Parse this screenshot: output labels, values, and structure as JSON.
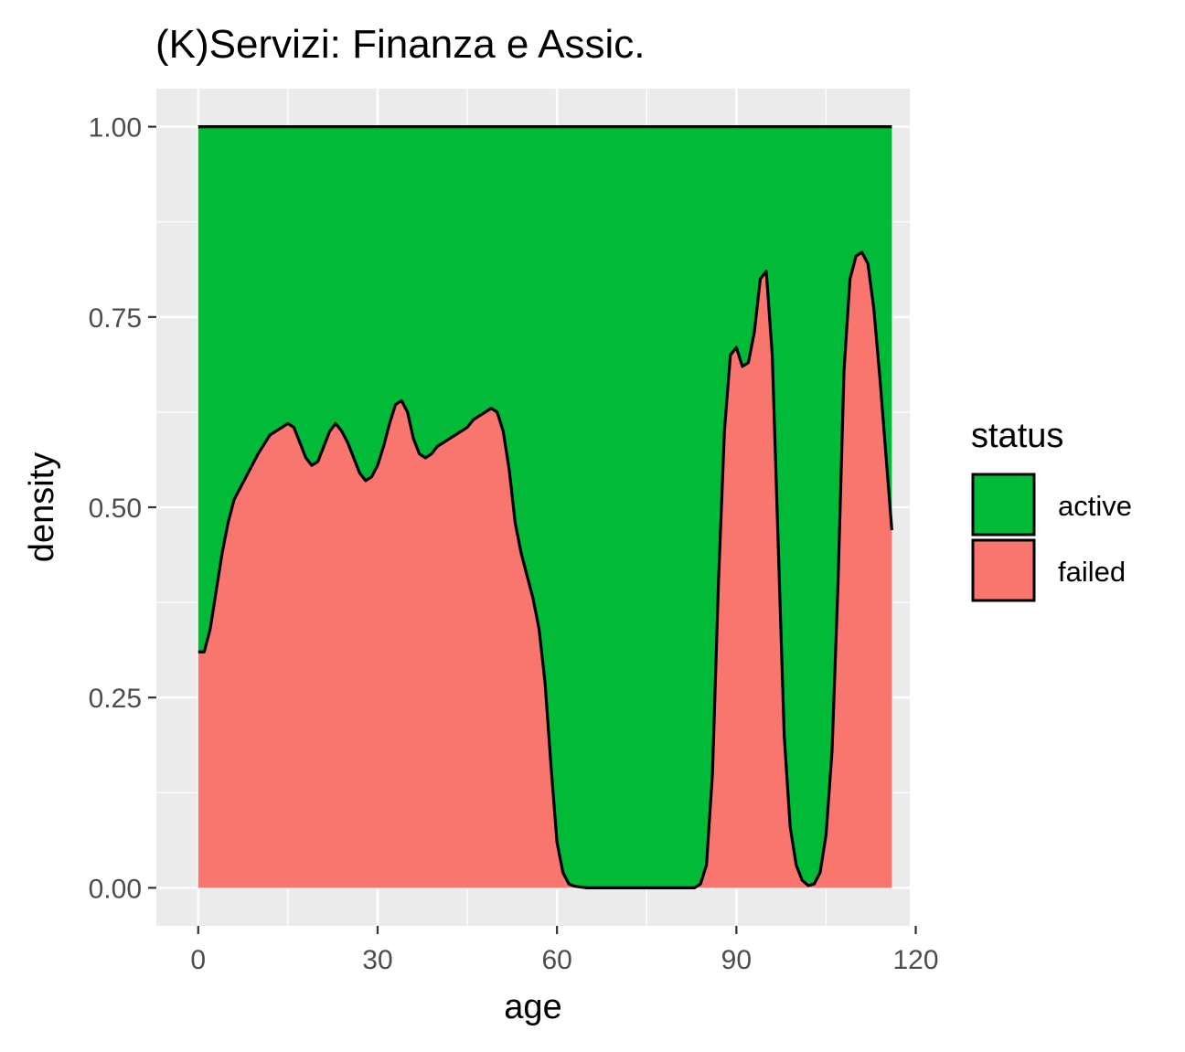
{
  "chart_data": {
    "type": "area",
    "title": "(K)Servizi: Finanza e Assic.",
    "xlabel": "age",
    "ylabel": "density",
    "xlim": [
      -7,
      119
    ],
    "ylim": [
      -0.05,
      1.05
    ],
    "x_ticks": [
      0,
      30,
      60,
      90,
      120
    ],
    "y_ticks": [
      0.0,
      0.25,
      0.5,
      0.75,
      1.0
    ],
    "x_tick_labels": [
      "0",
      "30",
      "60",
      "90",
      "120"
    ],
    "y_tick_labels": [
      "0.00",
      "0.25",
      "0.50",
      "0.75",
      "1.00"
    ],
    "grid": true,
    "stacked": true,
    "position": "fill",
    "legend": {
      "title": "status",
      "placement": "right",
      "entries": [
        {
          "label": "active",
          "color": "#00BA38"
        },
        {
          "label": "failed",
          "color": "#F8766D"
        }
      ]
    },
    "series": [
      {
        "name": "active",
        "color": "#00BA38"
      },
      {
        "name": "failed",
        "color": "#F8766D",
        "x": [
          0,
          1,
          2,
          3,
          4,
          5,
          6,
          8,
          10,
          12,
          14,
          15,
          16,
          17,
          18,
          19,
          20,
          21,
          22,
          23,
          24,
          25,
          26,
          27,
          28,
          29,
          30,
          31,
          32,
          33,
          34,
          35,
          36,
          37,
          38,
          39,
          40,
          41,
          42,
          43,
          44,
          45,
          46,
          47,
          48,
          49,
          50,
          51,
          52,
          53,
          54,
          55,
          56,
          57,
          58,
          59,
          60,
          61,
          62,
          63,
          64,
          65,
          66,
          70,
          75,
          80,
          83,
          84,
          85,
          86,
          87,
          88,
          89,
          90,
          91,
          92,
          93,
          94,
          95,
          96,
          97,
          98,
          99,
          100,
          101,
          102,
          103,
          104,
          105,
          106,
          107,
          108,
          109,
          110,
          111,
          112,
          113,
          114,
          115,
          116
        ],
        "values": [
          0.31,
          0.31,
          0.34,
          0.39,
          0.44,
          0.48,
          0.51,
          0.54,
          0.57,
          0.595,
          0.605,
          0.61,
          0.605,
          0.585,
          0.565,
          0.555,
          0.56,
          0.58,
          0.6,
          0.61,
          0.6,
          0.585,
          0.565,
          0.545,
          0.535,
          0.54,
          0.555,
          0.58,
          0.61,
          0.635,
          0.64,
          0.625,
          0.59,
          0.57,
          0.565,
          0.57,
          0.58,
          0.585,
          0.59,
          0.595,
          0.6,
          0.605,
          0.615,
          0.62,
          0.625,
          0.63,
          0.625,
          0.6,
          0.55,
          0.48,
          0.44,
          0.41,
          0.38,
          0.34,
          0.27,
          0.16,
          0.06,
          0.02,
          0.005,
          0.002,
          0.001,
          0.0,
          0.0,
          0.0,
          0.0,
          0.0,
          0.0,
          0.005,
          0.03,
          0.15,
          0.4,
          0.6,
          0.7,
          0.71,
          0.685,
          0.69,
          0.73,
          0.8,
          0.81,
          0.7,
          0.45,
          0.2,
          0.08,
          0.03,
          0.01,
          0.003,
          0.005,
          0.02,
          0.07,
          0.18,
          0.4,
          0.68,
          0.8,
          0.83,
          0.835,
          0.82,
          0.76,
          0.67,
          0.57,
          0.47
        ]
      }
    ]
  }
}
